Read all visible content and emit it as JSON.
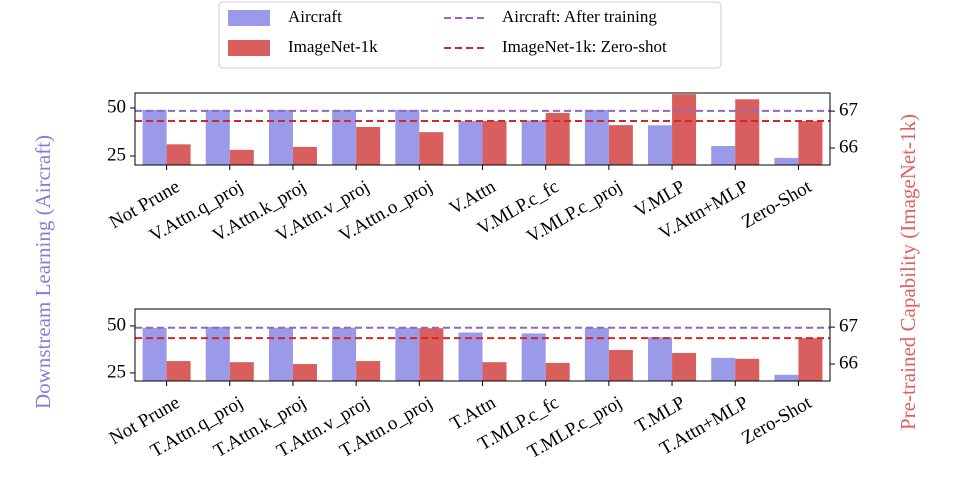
{
  "chart_data": [
    {
      "type": "bar",
      "ylabel": "Downstream Learning (Aircraft)",
      "y2label": "Pre-trained Capability (ImageNet-1k)",
      "categories": [
        "Not Prune",
        "V.Attn.q_proj",
        "V.Attn.k_proj",
        "V.Attn.v_proj",
        "V.Attn.o_proj",
        "V.Attn",
        "V.MLP.c_fc",
        "V.MLP.c_proj",
        "V.MLP",
        "V.Attn+MLP",
        "Zero-Shot"
      ],
      "series": [
        {
          "name": "Aircraft",
          "color": "#9a9ae8",
          "values": [
            49,
            49,
            49,
            49,
            49,
            43.2,
            43.5,
            49,
            41,
            30.2,
            24
          ]
        },
        {
          "name": "ImageNet-1k",
          "color": "#d95f5f",
          "axis": "y2",
          "values": [
            66.1,
            65.95,
            66.03,
            66.57,
            66.43,
            66.73,
            66.95,
            66.62,
            67.46,
            67.32,
            66.73
          ]
        }
      ],
      "hlines": [
        {
          "name": "Aircraft: After training",
          "color": "#9467bd",
          "value": 48.5
        },
        {
          "name": "ImageNet-1k: Zero-shot",
          "color": "#d62728",
          "axis": "y2",
          "value": 66.73
        }
      ],
      "ylim": [
        20.3,
        57.8
      ],
      "yticks": [
        25,
        50
      ],
      "y2lim": [
        65.54,
        67.49
      ],
      "y2ticks": [
        66,
        67
      ]
    },
    {
      "type": "bar",
      "categories": [
        "Not Prune",
        "T.Attn.q_proj",
        "T.Attn.k_proj",
        "T.Attn.v_proj",
        "T.Attn.o_proj",
        "T.Attn",
        "T.MLP.c_fc",
        "T.MLP.c_proj",
        "T.MLP",
        "T.Attn+MLP",
        "Zero-Shot"
      ],
      "series": [
        {
          "color": "#9a9ae8",
          "values": [
            49,
            49.5,
            49,
            49,
            49,
            46.5,
            46,
            49,
            44,
            33,
            24
          ]
        },
        {
          "color": "#d95f5f",
          "axis": "y2",
          "values": [
            66.08,
            66.05,
            66.0,
            66.08,
            66.97,
            66.05,
            66.03,
            66.38,
            66.3,
            66.14,
            66.7
          ]
        }
      ],
      "hlines": [
        {
          "color": "#9467bd",
          "value": 49
        },
        {
          "color": "#d62728",
          "axis": "y2",
          "value": 66.7
        }
      ],
      "ylim": [
        20.7,
        59
      ],
      "yticks": [
        25,
        50
      ],
      "y2lim": [
        65.54,
        67.49
      ],
      "y2ticks": [
        66,
        67
      ]
    }
  ]
}
